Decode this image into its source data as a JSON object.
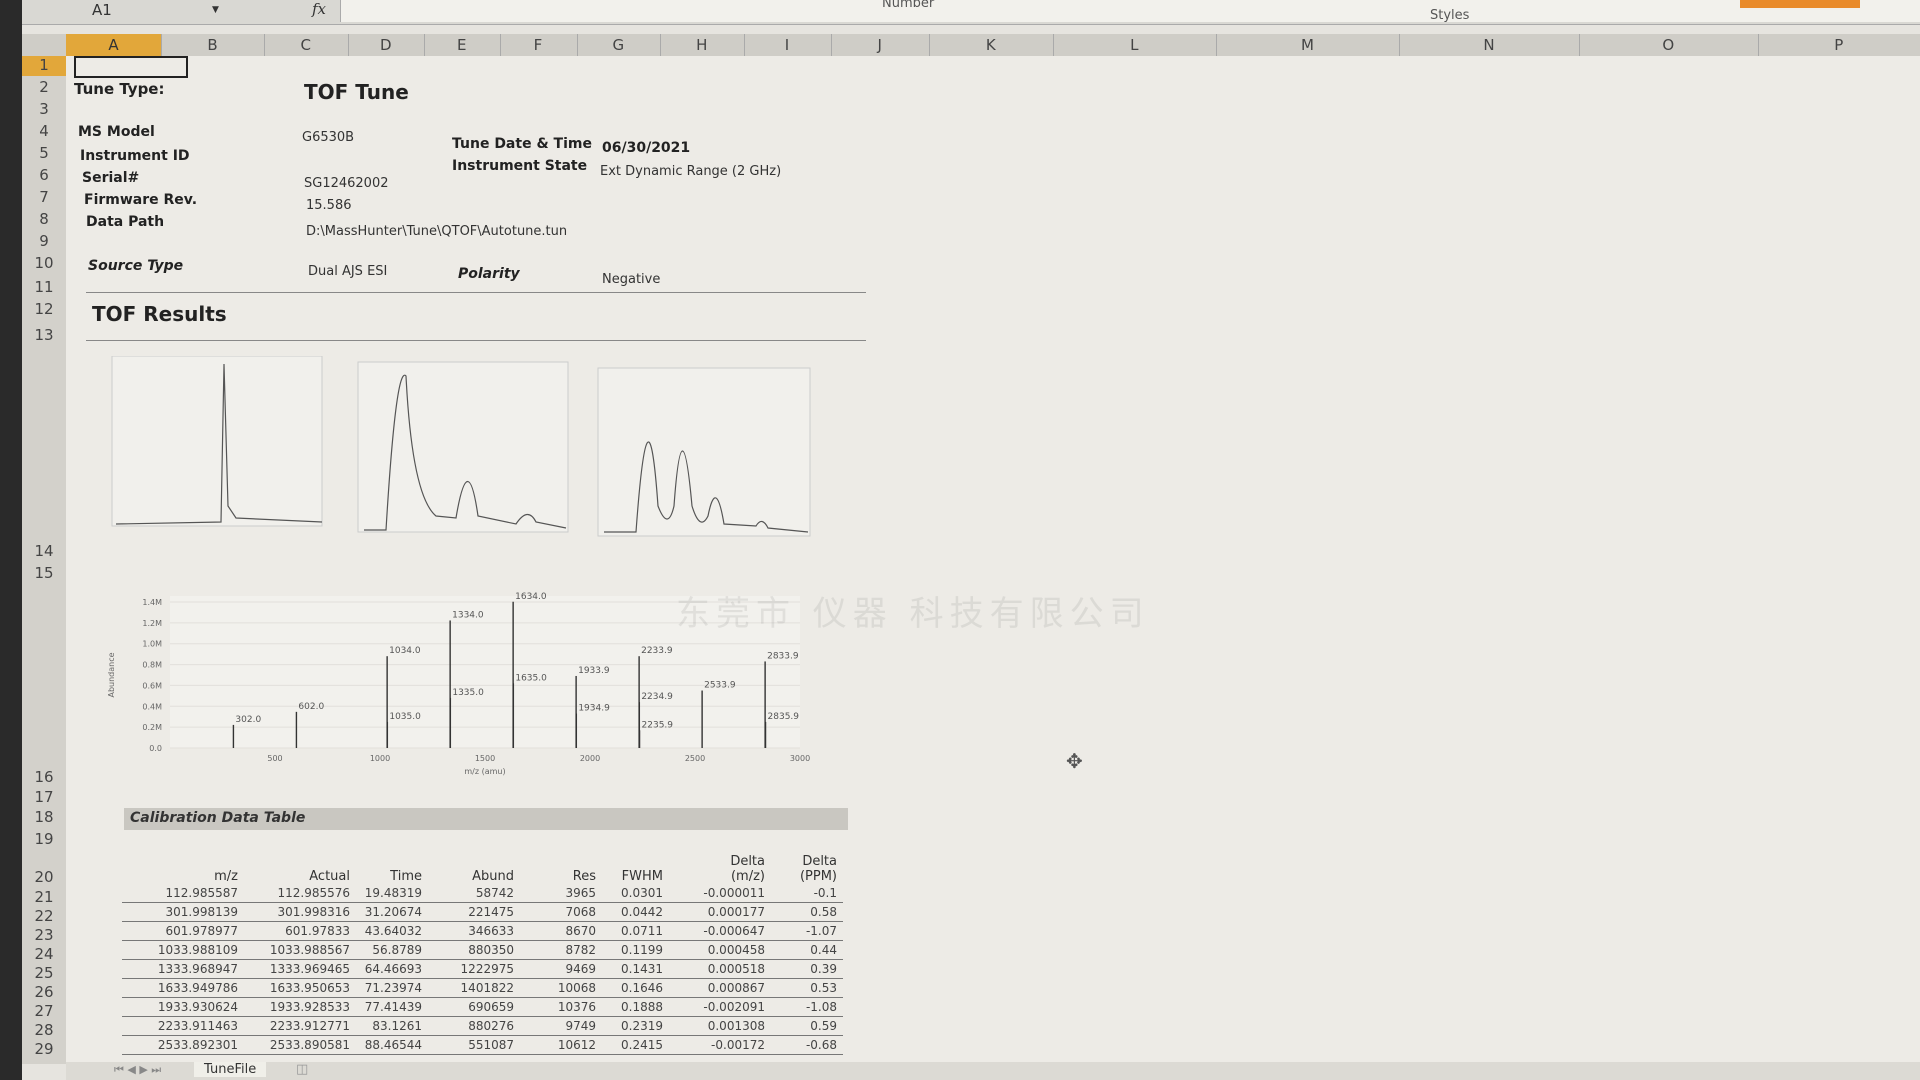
{
  "formula_bar": {
    "name_box": "A1",
    "fx_label": "fx",
    "number_group": "Number",
    "styles_group": "Styles"
  },
  "columns": [
    "A",
    "B",
    "C",
    "D",
    "E",
    "F",
    "G",
    "H",
    "I",
    "J",
    "K",
    "L",
    "M",
    "N",
    "O",
    "P"
  ],
  "rows": [
    "1",
    "2",
    "3",
    "4",
    "5",
    "6",
    "7",
    "8",
    "9",
    "10",
    "11",
    "12",
    "13",
    "14",
    "15",
    "16",
    "17",
    "18",
    "19",
    "20",
    "21",
    "22",
    "23",
    "24",
    "25",
    "26",
    "27",
    "28",
    "29"
  ],
  "header": {
    "tune_type_label": "Tune Type:",
    "tune_type": "TOF  Tune",
    "ms_model_label": "MS Model",
    "ms_model": "G6530B",
    "instrument_id_label": "Instrument ID",
    "serial_label": "Serial#",
    "serial": "SG12462002",
    "firmware_label": "Firmware Rev.",
    "firmware": "15.586",
    "data_path_label": "Data Path",
    "data_path": "D:\\MassHunter\\Tune\\QTOF\\Autotune.tun",
    "tune_date_label": "Tune Date & Time",
    "tune_date": "06/30/2021",
    "instrument_state_label": "Instrument State",
    "instrument_state": "Ext Dynamic Range (2 GHz)",
    "source_type_label": "Source Type",
    "source_type": "Dual AJS ESI",
    "polarity_label": "Polarity",
    "polarity": "Negative"
  },
  "tof_results_title": "TOF Results",
  "chart_data": {
    "type": "bar",
    "xlabel": "m/z (amu)",
    "ylabel": "Abundance",
    "xlim": [
      0,
      3000
    ],
    "ylim": [
      0,
      1400000
    ],
    "x_ticks": [
      500,
      1000,
      1500,
      2000,
      2500,
      3000
    ],
    "y_ticks": [
      {
        "v": 0,
        "label": "0.0"
      },
      {
        "v": 200000,
        "label": "0.2M"
      },
      {
        "v": 400000,
        "label": "0.4M"
      },
      {
        "v": 600000,
        "label": "0.6M"
      },
      {
        "v": 800000,
        "label": "0.8M"
      },
      {
        "v": 1000000,
        "label": "1.0M"
      },
      {
        "v": 1200000,
        "label": "1.2M"
      },
      {
        "v": 1400000,
        "label": "1.4M"
      }
    ],
    "grid": true,
    "peaks": [
      {
        "x": 302.0,
        "y": 221475,
        "label": "302.0"
      },
      {
        "x": 602.0,
        "y": 346633,
        "label": "602.0"
      },
      {
        "x": 1034.0,
        "y": 880350,
        "label": "1034.0"
      },
      {
        "x": 1035.0,
        "y": 250000,
        "label": "1035.0"
      },
      {
        "x": 1334.0,
        "y": 1222975,
        "label": "1334.0"
      },
      {
        "x": 1335.0,
        "y": 480000,
        "label": "1335.0"
      },
      {
        "x": 1634.0,
        "y": 1401822,
        "label": "1634.0"
      },
      {
        "x": 1635.0,
        "y": 620000,
        "label": "1635.0"
      },
      {
        "x": 1933.9,
        "y": 690659,
        "label": "1933.9"
      },
      {
        "x": 1934.9,
        "y": 330000,
        "label": "1934.9"
      },
      {
        "x": 2233.9,
        "y": 880276,
        "label": "2233.9"
      },
      {
        "x": 2234.9,
        "y": 440000,
        "label": "2234.9"
      },
      {
        "x": 2235.9,
        "y": 170000,
        "label": "2235.9"
      },
      {
        "x": 2533.9,
        "y": 551087,
        "label": "2533.9"
      },
      {
        "x": 2833.9,
        "y": 830000,
        "label": "2833.9"
      },
      {
        "x": 2835.9,
        "y": 250000,
        "label": "2835.9"
      }
    ]
  },
  "calibration": {
    "title": "Calibration Data Table",
    "headers": [
      "m/z",
      "Actual",
      "Time",
      "Abund",
      "Res",
      "FWHM",
      "Delta\n(m/z)",
      "Delta\n(PPM)"
    ],
    "rows": [
      [
        "112.985587",
        "112.985576",
        "19.48319",
        "58742",
        "3965",
        "0.0301",
        "-0.000011",
        "-0.1"
      ],
      [
        "301.998139",
        "301.998316",
        "31.20674",
        "221475",
        "7068",
        "0.0442",
        "0.000177",
        "0.58"
      ],
      [
        "601.978977",
        "601.97833",
        "43.64032",
        "346633",
        "8670",
        "0.0711",
        "-0.000647",
        "-1.07"
      ],
      [
        "1033.988109",
        "1033.988567",
        "56.8789",
        "880350",
        "8782",
        "0.1199",
        "0.000458",
        "0.44"
      ],
      [
        "1333.968947",
        "1333.969465",
        "64.46693",
        "1222975",
        "9469",
        "0.1431",
        "0.000518",
        "0.39"
      ],
      [
        "1633.949786",
        "1633.950653",
        "71.23974",
        "1401822",
        "10068",
        "0.1646",
        "0.000867",
        "0.53"
      ],
      [
        "1933.930624",
        "1933.928533",
        "77.41439",
        "690659",
        "10376",
        "0.1888",
        "-0.002091",
        "-1.08"
      ],
      [
        "2233.911463",
        "2233.912771",
        "83.1261",
        "880276",
        "9749",
        "0.2319",
        "0.001308",
        "0.59"
      ],
      [
        "2533.892301",
        "2533.890581",
        "88.46544",
        "551087",
        "10612",
        "0.2415",
        "-0.00172",
        "-0.68"
      ]
    ]
  },
  "sheet_tabs": {
    "active": "TuneFile"
  },
  "colors": {
    "selection": "#e2a73a",
    "background": "#edebe6"
  }
}
